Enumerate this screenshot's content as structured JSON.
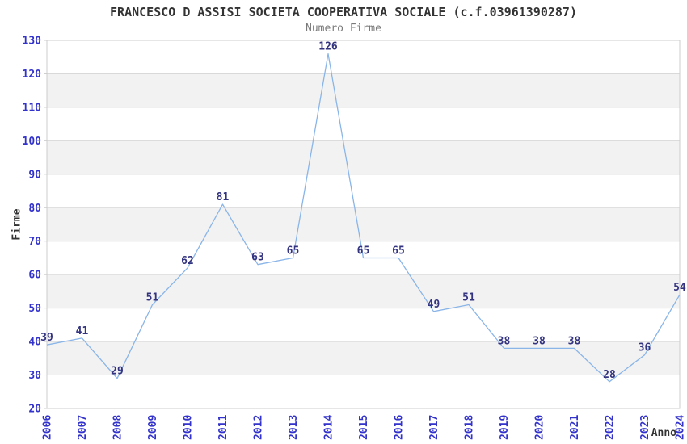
{
  "chart_data": {
    "type": "line",
    "title": "FRANCESCO D ASSISI SOCIETA COOPERATIVA SOCIALE (c.f.03961390287)",
    "subtitle": "Numero Firme",
    "xlabel": "Anno",
    "ylabel": "Firme",
    "categories": [
      "2006",
      "2007",
      "2008",
      "2009",
      "2010",
      "2011",
      "2012",
      "2013",
      "2014",
      "2015",
      "2016",
      "2017",
      "2018",
      "2019",
      "2020",
      "2021",
      "2022",
      "2023",
      "2024"
    ],
    "series": [
      {
        "name": "Numero Firme",
        "values": [
          39,
          41,
          29,
          51,
          62,
          81,
          63,
          65,
          126,
          65,
          65,
          49,
          51,
          38,
          38,
          38,
          28,
          36,
          54
        ]
      }
    ],
    "ylim": [
      20,
      130
    ],
    "ytick_step": 10,
    "yticks": [
      20,
      30,
      40,
      50,
      60,
      70,
      80,
      90,
      100,
      110,
      120,
      130
    ],
    "grid": true,
    "legend": "none",
    "colors": {
      "line": "#8ab5e8",
      "tick_label": "#3333cc",
      "data_label": "#333380",
      "band_fill": "#f2f2f2",
      "gridline": "#d9d9d9",
      "plot_border": "#cccccc",
      "title": "#333333",
      "subtitle": "#7a7a7a",
      "axis_label": "#333333"
    }
  }
}
